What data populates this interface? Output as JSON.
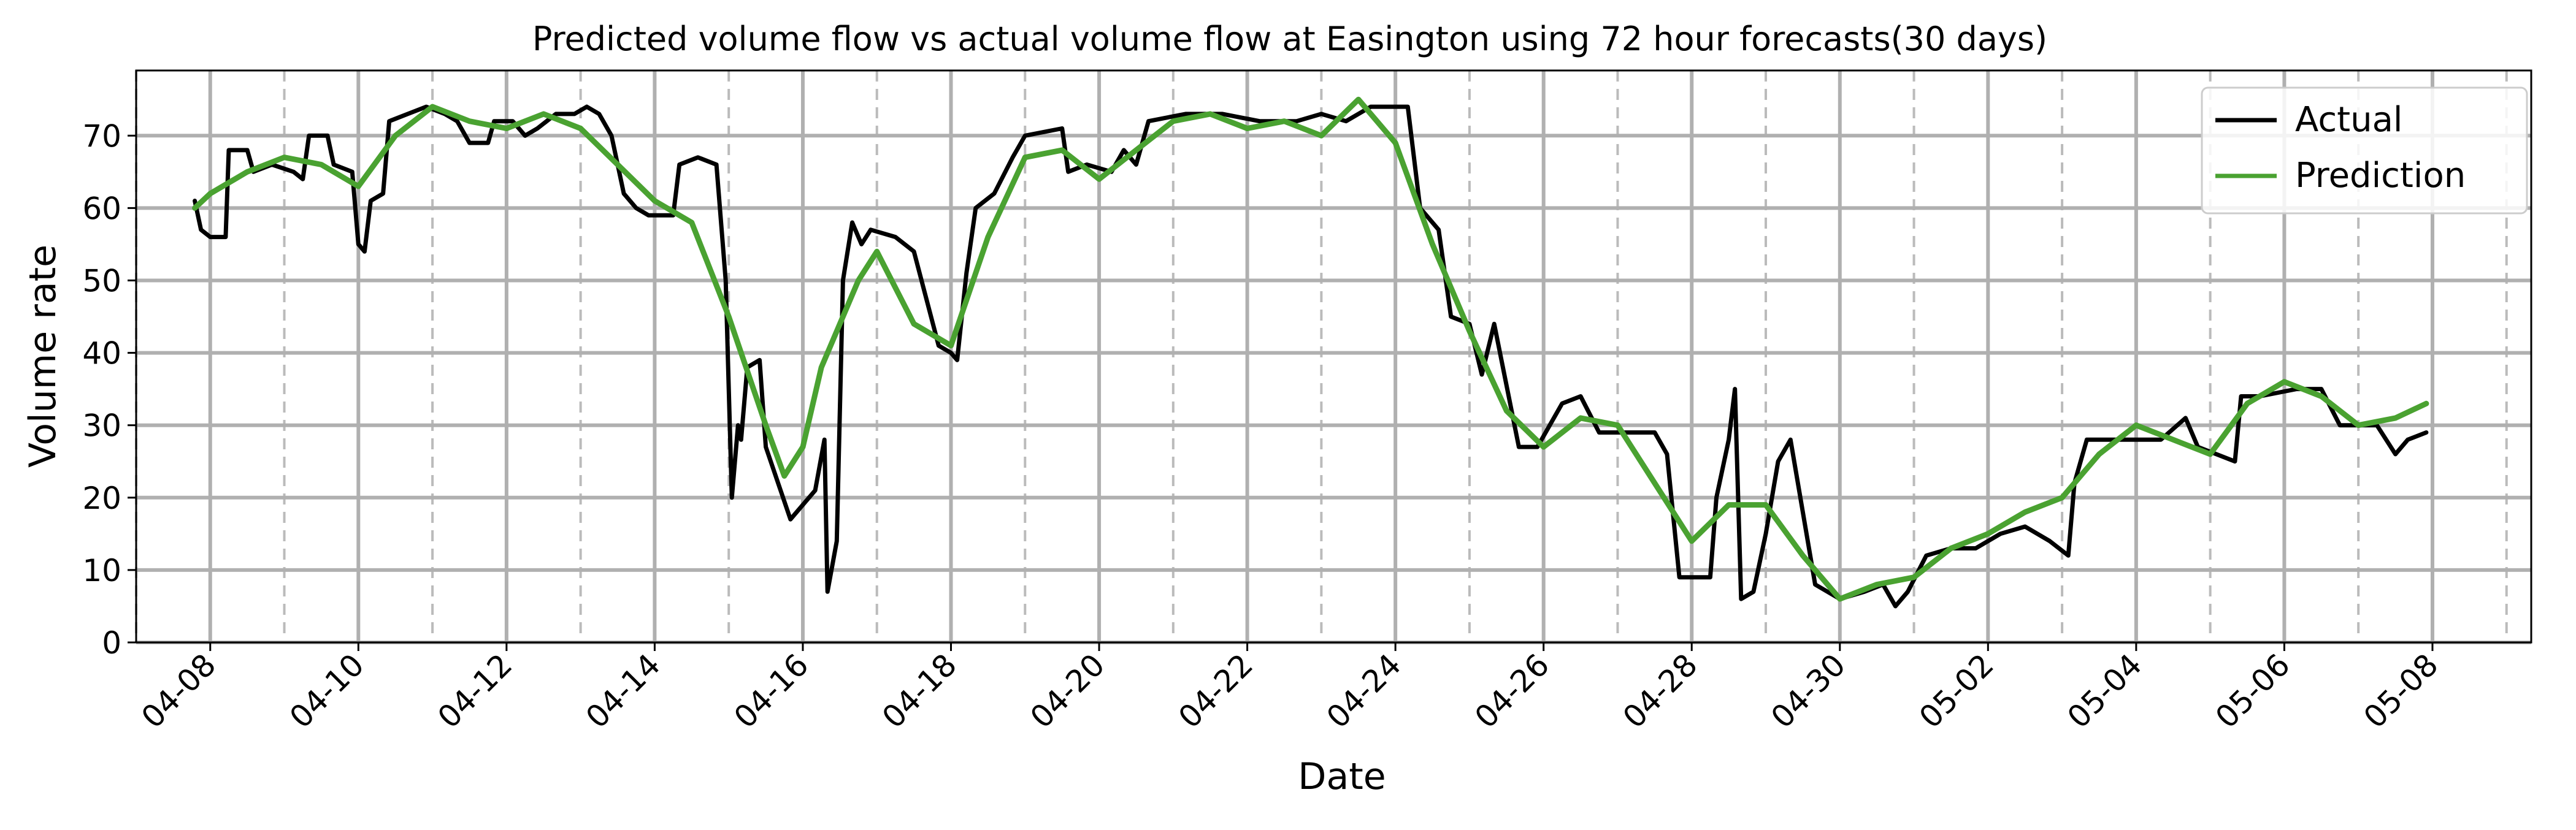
{
  "chart_data": {
    "type": "line",
    "title": "Predicted volume flow vs actual volume flow at Easington using 72 hour forecasts(30 days)",
    "xlabel": "Date",
    "ylabel": "Volume rate",
    "xlim": [
      "2025-04-07T00:00",
      "2025-05-09T08:00"
    ],
    "ylim": [
      0,
      79
    ],
    "x_ticks": [
      "04-08",
      "04-10",
      "04-12",
      "04-14",
      "04-16",
      "04-18",
      "04-20",
      "04-22",
      "04-24",
      "04-26",
      "04-28",
      "04-30",
      "05-02",
      "05-04",
      "05-06",
      "05-08"
    ],
    "y_ticks": [
      0,
      10,
      20,
      30,
      40,
      50,
      60,
      70
    ],
    "grid": {
      "major_solid": true,
      "minor_dashed_days": true
    },
    "legend": {
      "position": "top-right",
      "entries": [
        "Actual",
        "Prediction"
      ]
    },
    "series": [
      {
        "name": "Actual",
        "color": "#000000",
        "points": [
          [
            "2025-04-07T19:00",
            61
          ],
          [
            "2025-04-07T21:00",
            57
          ],
          [
            "2025-04-08T00:00",
            56
          ],
          [
            "2025-04-08T05:00",
            56
          ],
          [
            "2025-04-08T06:00",
            68
          ],
          [
            "2025-04-08T12:00",
            68
          ],
          [
            "2025-04-08T14:00",
            65
          ],
          [
            "2025-04-08T20:00",
            66
          ],
          [
            "2025-04-09T03:00",
            65
          ],
          [
            "2025-04-09T06:00",
            64
          ],
          [
            "2025-04-09T08:00",
            70
          ],
          [
            "2025-04-09T14:00",
            70
          ],
          [
            "2025-04-09T16:00",
            66
          ],
          [
            "2025-04-09T22:00",
            65
          ],
          [
            "2025-04-10T00:00",
            55
          ],
          [
            "2025-04-10T02:00",
            54
          ],
          [
            "2025-04-10T04:00",
            61
          ],
          [
            "2025-04-10T08:00",
            62
          ],
          [
            "2025-04-10T10:00",
            72
          ],
          [
            "2025-04-10T16:00",
            73
          ],
          [
            "2025-04-10T22:00",
            74
          ],
          [
            "2025-04-11T04:00",
            73
          ],
          [
            "2025-04-11T08:00",
            72
          ],
          [
            "2025-04-11T12:00",
            69
          ],
          [
            "2025-04-11T18:00",
            69
          ],
          [
            "2025-04-11T20:00",
            72
          ],
          [
            "2025-04-12T02:00",
            72
          ],
          [
            "2025-04-12T06:00",
            70
          ],
          [
            "2025-04-12T10:00",
            71
          ],
          [
            "2025-04-12T16:00",
            73
          ],
          [
            "2025-04-12T22:00",
            73
          ],
          [
            "2025-04-13T02:00",
            74
          ],
          [
            "2025-04-13T06:00",
            73
          ],
          [
            "2025-04-13T10:00",
            70
          ],
          [
            "2025-04-13T14:00",
            62
          ],
          [
            "2025-04-13T18:00",
            60
          ],
          [
            "2025-04-13T22:00",
            59
          ],
          [
            "2025-04-14T06:00",
            59
          ],
          [
            "2025-04-14T08:00",
            66
          ],
          [
            "2025-04-14T14:00",
            67
          ],
          [
            "2025-04-14T20:00",
            66
          ],
          [
            "2025-04-14T23:00",
            50
          ],
          [
            "2025-04-15T01:00",
            20
          ],
          [
            "2025-04-15T03:00",
            30
          ],
          [
            "2025-04-15T04:00",
            28
          ],
          [
            "2025-04-15T06:00",
            38
          ],
          [
            "2025-04-15T10:00",
            39
          ],
          [
            "2025-04-15T12:00",
            27
          ],
          [
            "2025-04-15T16:00",
            22
          ],
          [
            "2025-04-15T20:00",
            17
          ],
          [
            "2025-04-16T04:00",
            21
          ],
          [
            "2025-04-16T07:00",
            28
          ],
          [
            "2025-04-16T08:00",
            7
          ],
          [
            "2025-04-16T11:00",
            14
          ],
          [
            "2025-04-16T13:00",
            50
          ],
          [
            "2025-04-16T16:00",
            58
          ],
          [
            "2025-04-16T19:00",
            55
          ],
          [
            "2025-04-16T22:00",
            57
          ],
          [
            "2025-04-17T06:00",
            56
          ],
          [
            "2025-04-17T12:00",
            54
          ],
          [
            "2025-04-17T20:00",
            41
          ],
          [
            "2025-04-18T00:00",
            40
          ],
          [
            "2025-04-18T02:00",
            39
          ],
          [
            "2025-04-18T05:00",
            51
          ],
          [
            "2025-04-18T08:00",
            60
          ],
          [
            "2025-04-18T14:00",
            62
          ],
          [
            "2025-04-18T20:00",
            67
          ],
          [
            "2025-04-19T00:00",
            70
          ],
          [
            "2025-04-19T12:00",
            71
          ],
          [
            "2025-04-19T14:00",
            65
          ],
          [
            "2025-04-19T20:00",
            66
          ],
          [
            "2025-04-20T04:00",
            65
          ],
          [
            "2025-04-20T08:00",
            68
          ],
          [
            "2025-04-20T12:00",
            66
          ],
          [
            "2025-04-20T16:00",
            72
          ],
          [
            "2025-04-21T04:00",
            73
          ],
          [
            "2025-04-21T16:00",
            73
          ],
          [
            "2025-04-22T04:00",
            72
          ],
          [
            "2025-04-22T16:00",
            72
          ],
          [
            "2025-04-23T00:00",
            73
          ],
          [
            "2025-04-23T08:00",
            72
          ],
          [
            "2025-04-23T16:00",
            74
          ],
          [
            "2025-04-24T04:00",
            74
          ],
          [
            "2025-04-24T08:00",
            60
          ],
          [
            "2025-04-24T14:00",
            57
          ],
          [
            "2025-04-24T18:00",
            45
          ],
          [
            "2025-04-25T00:00",
            44
          ],
          [
            "2025-04-25T04:00",
            37
          ],
          [
            "2025-04-25T08:00",
            44
          ],
          [
            "2025-04-25T16:00",
            27
          ],
          [
            "2025-04-25T22:00",
            27
          ],
          [
            "2025-04-26T06:00",
            33
          ],
          [
            "2025-04-26T12:00",
            34
          ],
          [
            "2025-04-26T18:00",
            29
          ],
          [
            "2025-04-27T12:00",
            29
          ],
          [
            "2025-04-27T16:00",
            26
          ],
          [
            "2025-04-27T20:00",
            9
          ],
          [
            "2025-04-28T06:00",
            9
          ],
          [
            "2025-04-28T08:00",
            20
          ],
          [
            "2025-04-28T12:00",
            28
          ],
          [
            "2025-04-28T14:00",
            35
          ],
          [
            "2025-04-28T16:00",
            6
          ],
          [
            "2025-04-28T20:00",
            7
          ],
          [
            "2025-04-29T00:00",
            15
          ],
          [
            "2025-04-29T04:00",
            25
          ],
          [
            "2025-04-29T08:00",
            28
          ],
          [
            "2025-04-29T12:00",
            18
          ],
          [
            "2025-04-29T16:00",
            8
          ],
          [
            "2025-04-30T00:00",
            6
          ],
          [
            "2025-04-30T08:00",
            7
          ],
          [
            "2025-04-30T14:00",
            8
          ],
          [
            "2025-04-30T18:00",
            5
          ],
          [
            "2025-04-30T22:00",
            7
          ],
          [
            "2025-05-01T04:00",
            12
          ],
          [
            "2025-05-01T12:00",
            13
          ],
          [
            "2025-05-01T20:00",
            13
          ],
          [
            "2025-05-02T04:00",
            15
          ],
          [
            "2025-05-02T12:00",
            16
          ],
          [
            "2025-05-02T20:00",
            14
          ],
          [
            "2025-05-03T02:00",
            12
          ],
          [
            "2025-05-03T04:00",
            22
          ],
          [
            "2025-05-03T08:00",
            28
          ],
          [
            "2025-05-03T20:00",
            28
          ],
          [
            "2025-05-04T08:00",
            28
          ],
          [
            "2025-05-04T16:00",
            31
          ],
          [
            "2025-05-04T20:00",
            27
          ],
          [
            "2025-05-05T08:00",
            25
          ],
          [
            "2025-05-05T10:00",
            34
          ],
          [
            "2025-05-05T16:00",
            34
          ],
          [
            "2025-05-06T04:00",
            35
          ],
          [
            "2025-05-06T12:00",
            35
          ],
          [
            "2025-05-06T18:00",
            30
          ],
          [
            "2025-05-07T06:00",
            30
          ],
          [
            "2025-05-07T12:00",
            26
          ],
          [
            "2025-05-07T16:00",
            28
          ],
          [
            "2025-05-07T22:00",
            29
          ]
        ]
      },
      {
        "name": "Prediction",
        "color": "#4aa231",
        "points": [
          [
            "2025-04-07T19:00",
            60
          ],
          [
            "2025-04-08T00:00",
            62
          ],
          [
            "2025-04-08T12:00",
            65
          ],
          [
            "2025-04-09T00:00",
            67
          ],
          [
            "2025-04-09T12:00",
            66
          ],
          [
            "2025-04-10T00:00",
            63
          ],
          [
            "2025-04-10T12:00",
            70
          ],
          [
            "2025-04-11T00:00",
            74
          ],
          [
            "2025-04-11T12:00",
            72
          ],
          [
            "2025-04-12T00:00",
            71
          ],
          [
            "2025-04-12T12:00",
            73
          ],
          [
            "2025-04-13T00:00",
            71
          ],
          [
            "2025-04-13T12:00",
            66
          ],
          [
            "2025-04-14T00:00",
            61
          ],
          [
            "2025-04-14T12:00",
            58
          ],
          [
            "2025-04-15T00:00",
            45
          ],
          [
            "2025-04-15T12:00",
            30
          ],
          [
            "2025-04-15T18:00",
            23
          ],
          [
            "2025-04-16T00:00",
            27
          ],
          [
            "2025-04-16T06:00",
            38
          ],
          [
            "2025-04-16T18:00",
            50
          ],
          [
            "2025-04-17T00:00",
            54
          ],
          [
            "2025-04-17T12:00",
            44
          ],
          [
            "2025-04-18T00:00",
            41
          ],
          [
            "2025-04-18T12:00",
            56
          ],
          [
            "2025-04-19T00:00",
            67
          ],
          [
            "2025-04-19T12:00",
            68
          ],
          [
            "2025-04-20T00:00",
            64
          ],
          [
            "2025-04-20T12:00",
            68
          ],
          [
            "2025-04-21T00:00",
            72
          ],
          [
            "2025-04-21T12:00",
            73
          ],
          [
            "2025-04-22T00:00",
            71
          ],
          [
            "2025-04-22T12:00",
            72
          ],
          [
            "2025-04-23T00:00",
            70
          ],
          [
            "2025-04-23T12:00",
            75
          ],
          [
            "2025-04-24T00:00",
            69
          ],
          [
            "2025-04-24T12:00",
            55
          ],
          [
            "2025-04-25T00:00",
            43
          ],
          [
            "2025-04-25T12:00",
            32
          ],
          [
            "2025-04-26T00:00",
            27
          ],
          [
            "2025-04-26T12:00",
            31
          ],
          [
            "2025-04-27T00:00",
            30
          ],
          [
            "2025-04-27T12:00",
            22
          ],
          [
            "2025-04-28T00:00",
            14
          ],
          [
            "2025-04-28T12:00",
            19
          ],
          [
            "2025-04-29T00:00",
            19
          ],
          [
            "2025-04-29T12:00",
            12
          ],
          [
            "2025-04-30T00:00",
            6
          ],
          [
            "2025-04-30T12:00",
            8
          ],
          [
            "2025-05-01T00:00",
            9
          ],
          [
            "2025-05-01T12:00",
            13
          ],
          [
            "2025-05-02T00:00",
            15
          ],
          [
            "2025-05-02T12:00",
            18
          ],
          [
            "2025-05-03T00:00",
            20
          ],
          [
            "2025-05-03T12:00",
            26
          ],
          [
            "2025-05-04T00:00",
            30
          ],
          [
            "2025-05-04T12:00",
            28
          ],
          [
            "2025-05-05T00:00",
            26
          ],
          [
            "2025-05-05T12:00",
            33
          ],
          [
            "2025-05-06T00:00",
            36
          ],
          [
            "2025-05-06T12:00",
            34
          ],
          [
            "2025-05-07T00:00",
            30
          ],
          [
            "2025-05-07T12:00",
            31
          ],
          [
            "2025-05-07T22:00",
            33
          ]
        ]
      }
    ]
  }
}
